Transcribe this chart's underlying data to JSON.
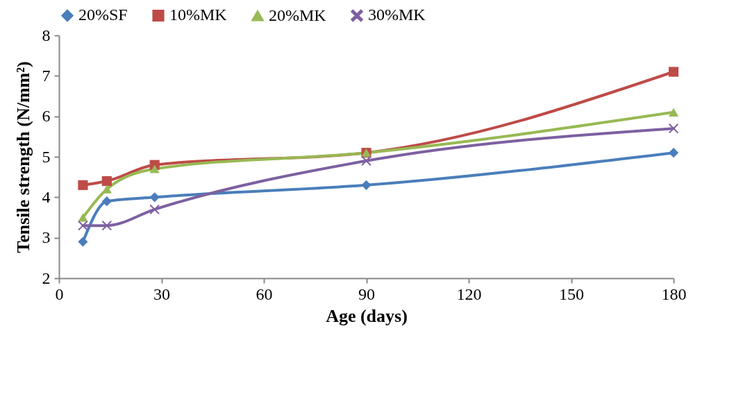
{
  "chart_data": {
    "type": "line",
    "xlabel": "Age (days)",
    "ylabel": "Tensile strength (N/mm²)",
    "x": [
      7,
      14,
      28,
      90,
      180
    ],
    "series": [
      {
        "name": "20%SF",
        "color": "#4a7ebb",
        "marker": "diamond",
        "values": [
          2.9,
          3.9,
          4.0,
          4.3,
          5.1
        ]
      },
      {
        "name": "10%MK",
        "color": "#be4b48",
        "marker": "square",
        "values": [
          4.3,
          4.4,
          4.8,
          5.1,
          7.1
        ]
      },
      {
        "name": "20%MK",
        "color": "#98b954",
        "marker": "triangle",
        "values": [
          3.5,
          4.2,
          4.7,
          5.1,
          6.1
        ]
      },
      {
        "name": "30%MK",
        "color": "#7d60a0",
        "marker": "cross",
        "values": [
          3.3,
          3.3,
          3.7,
          4.9,
          5.7
        ]
      }
    ],
    "xlim": [
      0,
      180
    ],
    "xticks": [
      0,
      30,
      60,
      90,
      120,
      150,
      180
    ],
    "ylim": [
      2,
      8
    ],
    "yticks": [
      2,
      3,
      4,
      5,
      6,
      7,
      8
    ],
    "grid": false,
    "legend": "top"
  }
}
